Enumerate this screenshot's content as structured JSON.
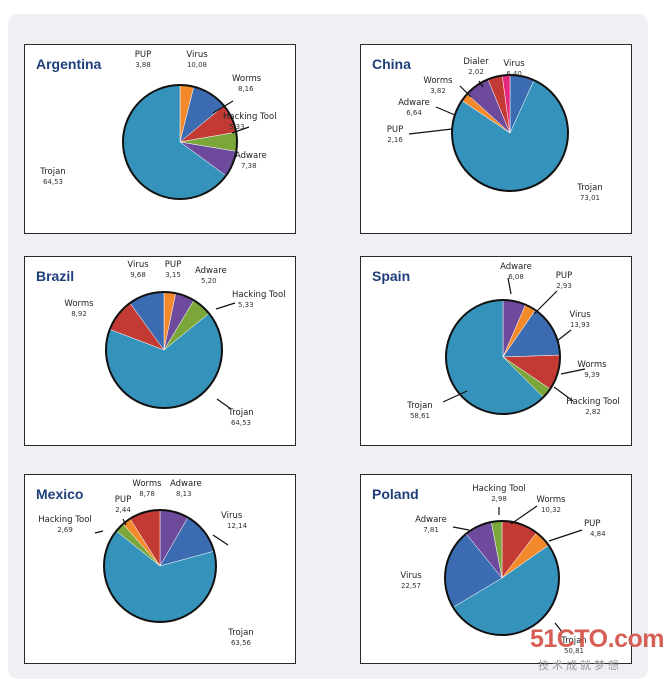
{
  "colors": {
    "Trojan": "#3592bb",
    "Adware": "#6e4a9c",
    "Hacking Tool": "#7aa63a",
    "Worms": "#c33a35",
    "Virus": "#3b6bb0",
    "PUP": "#f28a2b",
    "Dialer": "#e4267e"
  },
  "chart_data": [
    {
      "type": "pie",
      "title": "Argentina",
      "slices": [
        {
          "label": "PUP",
          "value_text": "3,88",
          "value": 3.88
        },
        {
          "label": "Virus",
          "value_text": "10,08",
          "value": 10.08
        },
        {
          "label": "Worms",
          "value_text": "8,16",
          "value": 8.16
        },
        {
          "label": "Hacking Tool",
          "value_text": "5,33",
          "value": 5.33
        },
        {
          "label": "Adware",
          "value_text": "7,38",
          "value": 7.38
        },
        {
          "label": "Trojan",
          "value_text": "64,53",
          "value": 64.53
        }
      ]
    },
    {
      "type": "pie",
      "title": "China",
      "slices": [
        {
          "label": "Virus",
          "value_text": "6,40",
          "value": 6.4
        },
        {
          "label": "Trojan",
          "value_text": "73,01",
          "value": 73.01
        },
        {
          "label": "PUP",
          "value_text": "2,16",
          "value": 2.16
        },
        {
          "label": "Adware",
          "value_text": "6,64",
          "value": 6.64
        },
        {
          "label": "Worms",
          "value_text": "3,82",
          "value": 3.82
        },
        {
          "label": "Dialer",
          "value_text": "2,02",
          "value": 2.02
        }
      ]
    },
    {
      "type": "pie",
      "title": "Brazil",
      "slices": [
        {
          "label": "PUP",
          "value_text": "3,15",
          "value": 3.15
        },
        {
          "label": "Adware",
          "value_text": "5,20",
          "value": 5.2
        },
        {
          "label": "Hacking Tool",
          "value_text": "5,33",
          "value": 5.33
        },
        {
          "label": "Trojan",
          "value_text": "64,53",
          "value": 64.53
        },
        {
          "label": "Worms",
          "value_text": "8,92",
          "value": 8.92
        },
        {
          "label": "Virus",
          "value_text": "9,68",
          "value": 9.68
        }
      ]
    },
    {
      "type": "pie",
      "title": "Spain",
      "slices": [
        {
          "label": "Adware",
          "value_text": "6,08",
          "value": 6.08
        },
        {
          "label": "PUP",
          "value_text": "2,93",
          "value": 2.93
        },
        {
          "label": "Virus",
          "value_text": "13,93",
          "value": 13.93
        },
        {
          "label": "Worms",
          "value_text": "9,39",
          "value": 9.39
        },
        {
          "label": "Hacking Tool",
          "value_text": "2,82",
          "value": 2.82
        },
        {
          "label": "Trojan",
          "value_text": "58,61",
          "value": 58.61
        }
      ]
    },
    {
      "type": "pie",
      "title": "Mexico",
      "slices": [
        {
          "label": "Adware",
          "value_text": "8,13",
          "value": 8.13
        },
        {
          "label": "Virus",
          "value_text": "12,14",
          "value": 12.14
        },
        {
          "label": "Trojan",
          "value_text": "63,56",
          "value": 63.56
        },
        {
          "label": "Hacking Tool",
          "value_text": "2,69",
          "value": 2.69
        },
        {
          "label": "PUP",
          "value_text": "2,44",
          "value": 2.44
        },
        {
          "label": "Worms",
          "value_text": "8,78",
          "value": 8.78
        }
      ]
    },
    {
      "type": "pie",
      "title": "Poland",
      "slices": [
        {
          "label": "Worms",
          "value_text": "10,32",
          "value": 10.32
        },
        {
          "label": "PUP",
          "value_text": "4,84",
          "value": 4.84
        },
        {
          "label": "Trojan",
          "value_text": "50,81",
          "value": 50.81
        },
        {
          "label": "Virus",
          "value_text": "22,57",
          "value": 22.57
        },
        {
          "label": "Adware",
          "value_text": "7,81",
          "value": 7.81
        },
        {
          "label": "Hacking Tool",
          "value_text": "2,98",
          "value": 2.98
        }
      ]
    }
  ],
  "watermark": {
    "site": "51CTO.com",
    "tagline": "技术成就梦想"
  }
}
